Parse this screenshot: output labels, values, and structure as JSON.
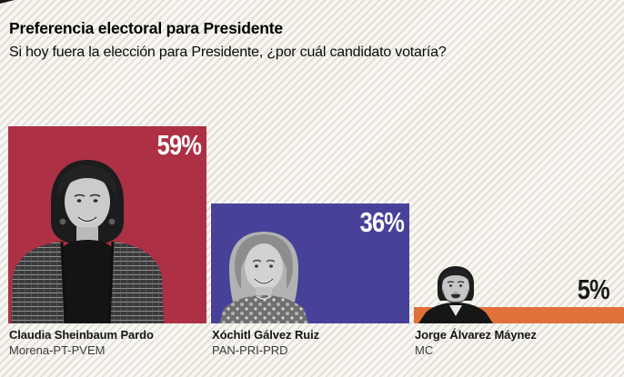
{
  "header": {
    "title": "Preferencia electoral para Presidente",
    "subtitle": "Si hoy fuera la elección para Presidente, ¿por cuál candidato votaría?"
  },
  "chart_data": {
    "type": "bar",
    "orientation": "vertical",
    "unit": "%",
    "title": "Preferencia electoral para Presidente",
    "subtitle": "Si hoy fuera la elección para Presidente, ¿por cuál candidato votaría?",
    "categories": [
      "Claudia Sheinbaum Pardo",
      "Xóchitl Gálvez Ruiz",
      "Jorge Álvarez Máynez"
    ],
    "values": [
      59,
      36,
      5
    ],
    "ylim": [
      0,
      59
    ],
    "grid": false,
    "legend": false,
    "bars": [
      {
        "name": "Claudia Sheinbaum Pardo",
        "party": "Morena-PT-PVEM",
        "value": 59,
        "value_label": "59%",
        "bar_color": "#ad3045",
        "value_label_color": "#ffffff",
        "photo": "Black-and-white cutout portrait of Claudia Sheinbaum Pardo"
      },
      {
        "name": "Xóchitl Gálvez Ruiz",
        "party": "PAN-PRI-PRD",
        "value": 36,
        "value_label": "36%",
        "bar_color": "#474199",
        "value_label_color": "#ffffff",
        "photo": "Black-and-white cutout portrait of Xóchitl Gálvez Ruiz"
      },
      {
        "name": "Jorge Álvarez Máynez",
        "party": "MC",
        "value": 5,
        "value_label": "5%",
        "bar_color": "#e0713a",
        "value_label_color": "#1a1a1a",
        "photo": "Black-and-white cutout portrait of Jorge Álvarez Máynez"
      }
    ]
  },
  "style": {
    "background_base": "#f8f7f3",
    "background_stripe": "#e2dfd5",
    "text_color": "#111111"
  }
}
